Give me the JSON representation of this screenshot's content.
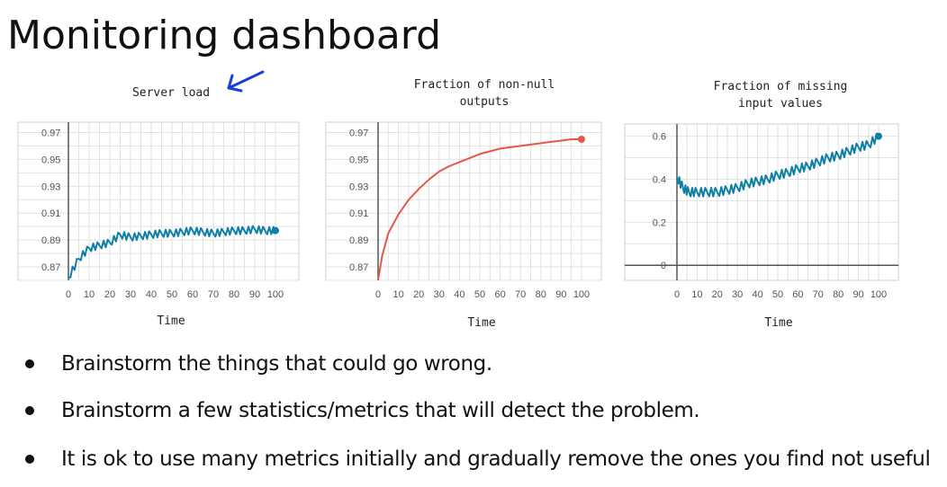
{
  "slide": {
    "title": "Monitoring dashboard",
    "bullets": [
      "Brainstorm the things that could go wrong.",
      "Brainstorm a few statistics/metrics that will detect the problem.",
      "It is ok to use many metrics initially and gradually remove the ones you find not useful"
    ],
    "annotation_icon": "hand-drawn-arrow-icon",
    "colors": {
      "blue_series": "#0e7fa6",
      "red_series": "#e8564a",
      "annotation": "#1a3fd6"
    }
  },
  "chart_data": [
    {
      "type": "line",
      "title": "Server load",
      "xlabel": "Time",
      "ylabel": "",
      "x": [
        0,
        5,
        10,
        15,
        20,
        25,
        30,
        35,
        40,
        45,
        50,
        55,
        60,
        65,
        70,
        75,
        80,
        85,
        90,
        95,
        100
      ],
      "values": [
        0.862,
        0.876,
        0.884,
        0.886,
        0.888,
        0.894,
        0.892,
        0.893,
        0.894,
        0.895,
        0.895,
        0.896,
        0.897,
        0.896,
        0.895,
        0.896,
        0.897,
        0.897,
        0.898,
        0.897,
        0.897
      ],
      "xticks": [
        0,
        10,
        20,
        30,
        40,
        50,
        60,
        70,
        80,
        90,
        100
      ],
      "yticks": [
        0.87,
        0.89,
        0.91,
        0.93,
        0.95,
        0.97
      ],
      "ytick_labels": [
        "0.87",
        "0.89",
        "0.91",
        "0.93",
        "0.95",
        "0.97"
      ],
      "ylim": [
        0.86,
        0.975
      ],
      "xlim": [
        0,
        100
      ],
      "color": "#0e7fa6"
    },
    {
      "type": "line",
      "title": "Fraction of non-null outputs",
      "xlabel": "Time",
      "ylabel": "",
      "x": [
        0,
        2,
        5,
        10,
        15,
        20,
        25,
        30,
        35,
        40,
        45,
        50,
        55,
        60,
        65,
        70,
        75,
        80,
        85,
        90,
        95,
        100
      ],
      "values": [
        0.86,
        0.878,
        0.895,
        0.909,
        0.92,
        0.928,
        0.935,
        0.941,
        0.945,
        0.948,
        0.951,
        0.954,
        0.956,
        0.958,
        0.959,
        0.96,
        0.961,
        0.962,
        0.963,
        0.964,
        0.965,
        0.965
      ],
      "xticks": [
        0,
        10,
        20,
        30,
        40,
        50,
        60,
        70,
        80,
        90,
        100
      ],
      "yticks": [
        0.87,
        0.89,
        0.91,
        0.93,
        0.95,
        0.97
      ],
      "ytick_labels": [
        "0.87",
        "0.89",
        "0.91",
        "0.93",
        "0.95",
        "0.97"
      ],
      "ylim": [
        0.86,
        0.975
      ],
      "xlim": [
        0,
        100
      ],
      "color": "#e8564a"
    },
    {
      "type": "line",
      "title": "Fraction of missing input values",
      "xlabel": "Time",
      "ylabel": "",
      "x": [
        0,
        3,
        6,
        10,
        15,
        20,
        25,
        30,
        35,
        40,
        45,
        50,
        55,
        60,
        65,
        70,
        75,
        80,
        85,
        90,
        95,
        100
      ],
      "values": [
        0.41,
        0.36,
        0.34,
        0.34,
        0.34,
        0.34,
        0.35,
        0.36,
        0.38,
        0.39,
        0.4,
        0.42,
        0.43,
        0.45,
        0.46,
        0.48,
        0.5,
        0.51,
        0.53,
        0.55,
        0.56,
        0.6
      ],
      "xticks": [
        0,
        10,
        20,
        30,
        40,
        50,
        60,
        70,
        80,
        90,
        100
      ],
      "yticks": [
        0,
        0.2,
        0.4,
        0.6
      ],
      "ytick_labels": [
        "0",
        "0.2",
        "0.4",
        "0.6"
      ],
      "ylim": [
        -0.07,
        0.64
      ],
      "xlim": [
        0,
        100
      ],
      "color": "#0e7fa6"
    }
  ]
}
